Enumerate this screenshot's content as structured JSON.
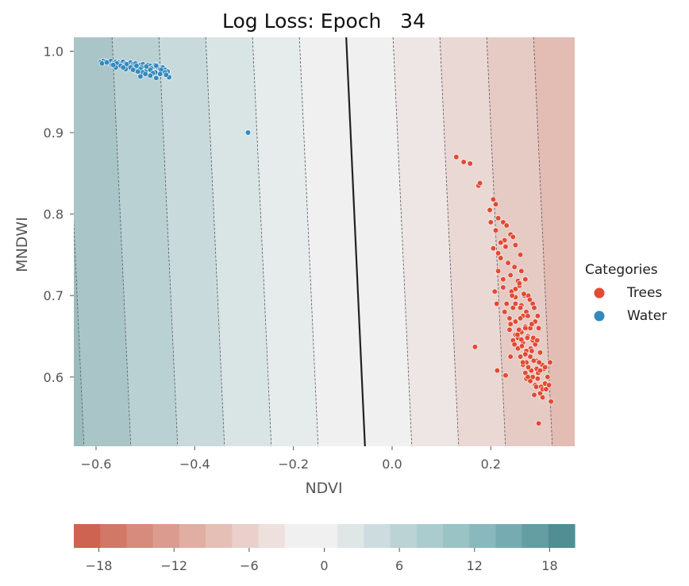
{
  "chart_data": {
    "type": "scatter",
    "title": "Log Loss: Epoch   34",
    "xlabel": "NDVI",
    "ylabel": "MNDWI",
    "xlim": [
      -0.645,
      0.37
    ],
    "ylim": [
      0.515,
      1.017
    ],
    "x_ticks": [
      "−0.6",
      "−0.4",
      "−0.2",
      "0.0",
      "0.2"
    ],
    "x_tick_values": [
      -0.6,
      -0.4,
      -0.2,
      0.0,
      0.2
    ],
    "y_ticks": [
      "0.6",
      "0.7",
      "0.8",
      "0.9",
      "1.0"
    ],
    "y_tick_values": [
      0.6,
      0.7,
      0.8,
      0.9,
      1.0
    ],
    "grid": false,
    "background": "decision-function contour field (diverging teal to salmon)",
    "decision_boundary": {
      "x_at_top": -0.093,
      "x_at_bottom": -0.055,
      "color": "#222222"
    },
    "contour_levels_dashed": [
      -18,
      -15,
      -12,
      -9,
      -6,
      -3,
      3,
      6,
      9,
      12,
      15,
      18
    ],
    "legend": {
      "title": "Categories",
      "position": "right",
      "entries": [
        {
          "label": "Trees",
          "color": "#e24a33"
        },
        {
          "label": "Water",
          "color": "#348abd"
        }
      ]
    },
    "series": [
      {
        "name": "Trees",
        "color": "#e24a33",
        "x": [
          0.13,
          0.145,
          0.158,
          0.175,
          0.178,
          0.205,
          0.21,
          0.198,
          0.2,
          0.215,
          0.21,
          0.225,
          0.232,
          0.24,
          0.228,
          0.22,
          0.205,
          0.215,
          0.23,
          0.245,
          0.25,
          0.22,
          0.235,
          0.26,
          0.248,
          0.215,
          0.208,
          0.225,
          0.212,
          0.24,
          0.255,
          0.262,
          0.225,
          0.242,
          0.258,
          0.27,
          0.232,
          0.25,
          0.268,
          0.245,
          0.262,
          0.228,
          0.238,
          0.265,
          0.276,
          0.285,
          0.272,
          0.24,
          0.25,
          0.26,
          0.27,
          0.28,
          0.262,
          0.25,
          0.238,
          0.245,
          0.255,
          0.265,
          0.275,
          0.285,
          0.29,
          0.275,
          0.26,
          0.25,
          0.243,
          0.25,
          0.258,
          0.267,
          0.279,
          0.288,
          0.295,
          0.283,
          0.27,
          0.257,
          0.248,
          0.255,
          0.263,
          0.272,
          0.281,
          0.29,
          0.297,
          0.286,
          0.274,
          0.262,
          0.254,
          0.26,
          0.27,
          0.28,
          0.292,
          0.3,
          0.294,
          0.283,
          0.272,
          0.265,
          0.27,
          0.282,
          0.293,
          0.304,
          0.298,
          0.287,
          0.276,
          0.272,
          0.285,
          0.296,
          0.308,
          0.302,
          0.29,
          0.28,
          0.288,
          0.3,
          0.31,
          0.305,
          0.295,
          0.315,
          0.32,
          0.31,
          0.3,
          0.318,
          0.312,
          0.305,
          0.322,
          0.292,
          0.275,
          0.265,
          0.24,
          0.23,
          0.213,
          0.168,
          0.297
        ],
        "y": [
          0.87,
          0.864,
          0.862,
          0.835,
          0.838,
          0.818,
          0.812,
          0.805,
          0.79,
          0.795,
          0.78,
          0.79,
          0.786,
          0.775,
          0.768,
          0.765,
          0.758,
          0.752,
          0.76,
          0.772,
          0.762,
          0.746,
          0.74,
          0.75,
          0.735,
          0.73,
          0.705,
          0.72,
          0.69,
          0.725,
          0.718,
          0.73,
          0.71,
          0.705,
          0.712,
          0.72,
          0.69,
          0.698,
          0.7,
          0.685,
          0.688,
          0.68,
          0.672,
          0.675,
          0.7,
          0.69,
          0.68,
          0.665,
          0.668,
          0.672,
          0.662,
          0.66,
          0.655,
          0.652,
          0.658,
          0.645,
          0.648,
          0.642,
          0.65,
          0.645,
          0.668,
          0.675,
          0.685,
          0.69,
          0.7,
          0.708,
          0.715,
          0.702,
          0.695,
          0.685,
          0.675,
          0.665,
          0.66,
          0.658,
          0.64,
          0.635,
          0.638,
          0.632,
          0.635,
          0.64,
          0.66,
          0.648,
          0.648,
          0.646,
          0.652,
          0.625,
          0.628,
          0.625,
          0.62,
          0.63,
          0.645,
          0.632,
          0.618,
          0.615,
          0.605,
          0.608,
          0.61,
          0.615,
          0.618,
          0.62,
          0.612,
          0.598,
          0.6,
          0.605,
          0.61,
          0.588,
          0.59,
          0.595,
          0.578,
          0.58,
          0.592,
          0.585,
          0.598,
          0.6,
          0.618,
          0.612,
          0.608,
          0.59,
          0.585,
          0.575,
          0.57,
          0.588,
          0.6,
          0.618,
          0.625,
          0.602,
          0.608,
          0.637,
          0.543
        ]
      },
      {
        "name": "Water",
        "color": "#348abd",
        "x": [
          -0.59,
          -0.585,
          -0.58,
          -0.575,
          -0.57,
          -0.565,
          -0.56,
          -0.555,
          -0.55,
          -0.545,
          -0.54,
          -0.535,
          -0.53,
          -0.525,
          -0.52,
          -0.515,
          -0.51,
          -0.505,
          -0.5,
          -0.495,
          -0.49,
          -0.485,
          -0.48,
          -0.475,
          -0.47,
          -0.465,
          -0.46,
          -0.455,
          -0.588,
          -0.578,
          -0.568,
          -0.558,
          -0.548,
          -0.538,
          -0.528,
          -0.518,
          -0.508,
          -0.498,
          -0.488,
          -0.478,
          -0.468,
          -0.56,
          -0.55,
          -0.54,
          -0.53,
          -0.52,
          -0.51,
          -0.5,
          -0.49,
          -0.48,
          -0.565,
          -0.545,
          -0.525,
          -0.505,
          -0.485,
          -0.47,
          -0.46,
          -0.452,
          -0.458,
          -0.49,
          -0.478,
          -0.5,
          -0.51,
          -0.515,
          -0.292
        ],
        "y": [
          0.987,
          0.988,
          0.987,
          0.986,
          0.988,
          0.985,
          0.987,
          0.986,
          0.984,
          0.987,
          0.985,
          0.983,
          0.986,
          0.984,
          0.985,
          0.982,
          0.983,
          0.984,
          0.981,
          0.983,
          0.982,
          0.98,
          0.983,
          0.98,
          0.978,
          0.98,
          0.977,
          0.975,
          0.985,
          0.986,
          0.983,
          0.985,
          0.982,
          0.984,
          0.981,
          0.982,
          0.98,
          0.981,
          0.979,
          0.982,
          0.977,
          0.98,
          0.982,
          0.978,
          0.98,
          0.976,
          0.978,
          0.975,
          0.977,
          0.974,
          0.983,
          0.98,
          0.977,
          0.974,
          0.973,
          0.972,
          0.974,
          0.968,
          0.971,
          0.97,
          0.967,
          0.972,
          0.969,
          0.975,
          0.9
        ]
      }
    ],
    "colorbar": {
      "ticks": [
        "−18",
        "−12",
        "−6",
        "0",
        "6",
        "12",
        "18"
      ],
      "tick_values": [
        -18,
        -12,
        -6,
        0,
        6,
        12,
        18
      ],
      "range": [
        -20,
        20
      ],
      "colors": [
        "#cd6350",
        "#d17867",
        "#d68b7c",
        "#db9c8f",
        "#e1aea3",
        "#e5bfb6",
        "#eacfca",
        "#ede0dd",
        "#f0f0f0",
        "#f0f0f0",
        "#dee6e6",
        "#cddddf",
        "#bcd3d5",
        "#aaccce",
        "#9ac3c6",
        "#89b9bd",
        "#76acb1",
        "#649ea3",
        "#508e93"
      ]
    }
  }
}
